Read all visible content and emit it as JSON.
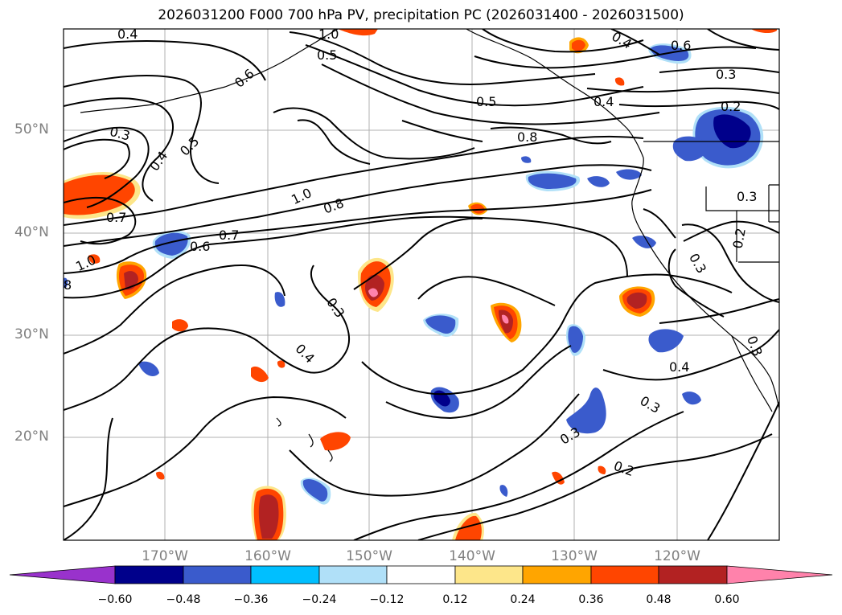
{
  "title": "2026031200 F000 700 hPa PV, precipitation PC (2026031400 - 2026031500)",
  "lat_labels": [
    "50°N",
    "40°N",
    "30°N",
    "20°N"
  ],
  "lon_labels": [
    "170°W",
    "160°W",
    "150°W",
    "140°W",
    "130°W",
    "120°W"
  ],
  "colorbar": {
    "tick_labels": [
      "−0.60",
      "−0.48",
      "−0.36",
      "−0.24",
      "−0.12",
      "0.12",
      "0.24",
      "0.36",
      "0.48",
      "0.60"
    ],
    "colors": [
      "#9932cc",
      "#00008b",
      "#3a5bcc",
      "#00bfff",
      "#b0e0f8",
      "#ffffff",
      "#fde68a",
      "#ffa500",
      "#ff4500",
      "#b22222",
      "#ff82ab"
    ]
  },
  "contour_labels": [
    "0.4",
    "1.0",
    "0.6",
    "0.5",
    "0.4",
    "0.6",
    "0.3",
    "0.2",
    "0.5",
    "0.4",
    "0.8",
    "0.3",
    "0.4",
    "0.5",
    "1.0",
    "0.8",
    "0.3",
    "0.7",
    "0.6",
    "0.7",
    "1.0",
    "8",
    "0.3",
    "0.4",
    "0.3",
    "0.2",
    "0.3",
    "0.4",
    "0.3",
    "0.3",
    "0.2"
  ]
}
